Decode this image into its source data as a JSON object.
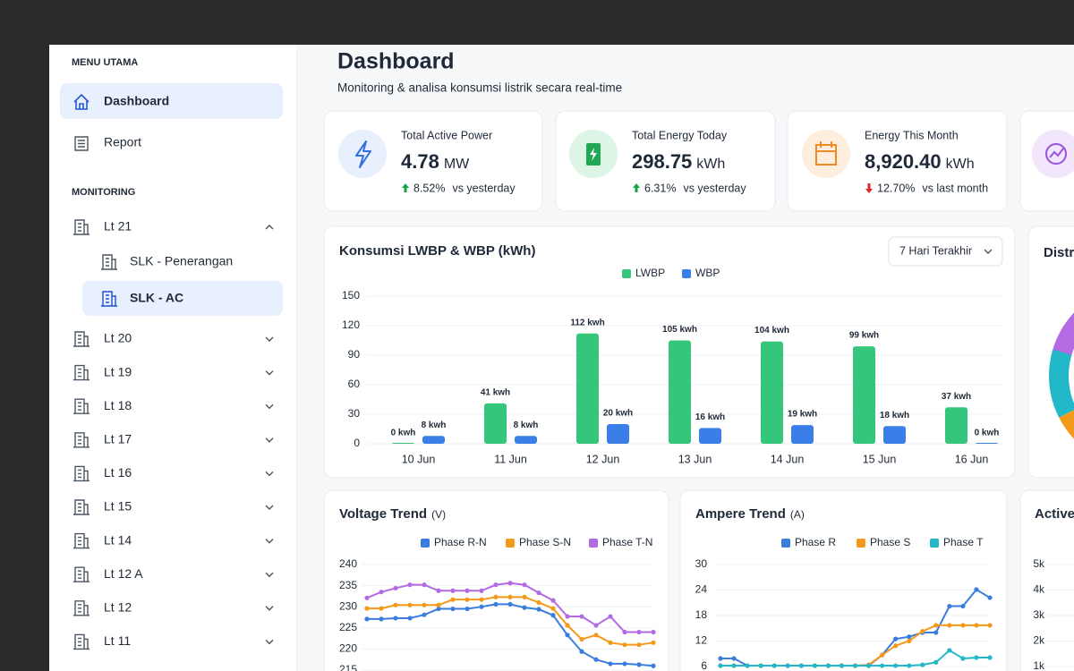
{
  "sidebar": {
    "menu_title": "MENU UTAMA",
    "menu": [
      "Dashboard",
      "Report"
    ],
    "monitoring_title": "MONITORING",
    "floors": [
      {
        "label": "Lt 21",
        "children": [
          "SLK - Penerangan",
          "SLK - AC"
        ]
      },
      {
        "label": "Lt 20"
      },
      {
        "label": "Lt 19"
      },
      {
        "label": "Lt 18"
      },
      {
        "label": "Lt 17"
      },
      {
        "label": "Lt 16"
      },
      {
        "label": "Lt 15"
      },
      {
        "label": "Lt 14"
      },
      {
        "label": "Lt 12 A"
      },
      {
        "label": "Lt 12"
      },
      {
        "label": "Lt 11"
      }
    ]
  },
  "header": {
    "title": "Dashboard",
    "subtitle": "Monitoring & analisa konsumsi listrik secara real-time"
  },
  "stat_cards": [
    {
      "label": "Total Active Power",
      "value": "4.78",
      "unit": "MW",
      "change": "8.52%",
      "trend": "up",
      "compare": "vs yesterday"
    },
    {
      "label": "Total Energy Today",
      "value": "298.75",
      "unit": "kWh",
      "change": "6.31%",
      "trend": "up",
      "compare": "vs yesterday"
    },
    {
      "label": "Energy This Month",
      "value": "8,920.40",
      "unit": "kWh",
      "change": "12.70%",
      "trend": "down",
      "compare": "vs last month"
    }
  ],
  "distribution": {
    "title": "Distr"
  },
  "chart_data": [
    {
      "type": "bar",
      "title": "Konsumsi LWBP & WBP (kWh)",
      "dropdown": "7 Hari Terakhir",
      "categories": [
        "10 Jun",
        "11 Jun",
        "12 Jun",
        "13 Jun",
        "14 Jun",
        "15 Jun",
        "16 Jun"
      ],
      "series": [
        {
          "name": "LWBP",
          "color": "#34c77b",
          "values": [
            0,
            41,
            112,
            105,
            104,
            99,
            37
          ],
          "value_labels": [
            "0 kwh",
            "41 kwh",
            "112 kwh",
            "105 kwh",
            "104 kwh",
            "99 kwh",
            "37 kwh"
          ]
        },
        {
          "name": "WBP",
          "color": "#3b7ee8",
          "values": [
            8,
            8,
            20,
            16,
            19,
            18,
            0
          ],
          "value_labels": [
            "8 kwh",
            "8 kwh",
            "20 kwh",
            "16 kwh",
            "19 kwh",
            "18 kwh",
            "0 kwh"
          ]
        }
      ],
      "ylim": [
        0,
        150
      ],
      "yticks": [
        0,
        30,
        60,
        90,
        120,
        150
      ],
      "grid": true
    },
    {
      "type": "line",
      "title": "Voltage Trend",
      "unit": "(V)",
      "categories": [
        null,
        null,
        null,
        null,
        null,
        null,
        null,
        null,
        null,
        null,
        null,
        null,
        null,
        null,
        null,
        null,
        null,
        null,
        null,
        null,
        null
      ],
      "series": [
        {
          "name": "Phase R-N",
          "color": "#3b7ddd",
          "values": [
            227.1,
            227.1,
            227.3,
            227.3,
            228.1,
            229.5,
            229.5,
            229.5,
            230,
            230.6,
            230.6,
            229.8,
            229.4,
            228,
            223.3,
            219.4,
            217.5,
            216.5,
            216.5,
            216.3,
            216
          ]
        },
        {
          "name": "Phase S-N",
          "color": "#f39a1a",
          "values": [
            229.6,
            229.6,
            230.4,
            230.4,
            230.4,
            230.4,
            231.7,
            231.7,
            231.7,
            232.3,
            232.3,
            232.3,
            231,
            229.6,
            225.6,
            222.3,
            223.3,
            221.5,
            221,
            221,
            221.5
          ]
        },
        {
          "name": "Phase T-N",
          "color": "#b36ae2",
          "values": [
            232.1,
            233.5,
            234.4,
            235.2,
            235.2,
            233.8,
            233.8,
            233.8,
            233.8,
            235.2,
            235.6,
            235.2,
            233.3,
            231.5,
            227.7,
            227.7,
            225.6,
            227.7,
            224,
            224,
            224
          ]
        }
      ],
      "ylim": [
        215,
        240
      ],
      "yticks": [
        215,
        220,
        225,
        230,
        235,
        240
      ],
      "grid": true
    },
    {
      "type": "line",
      "title": "Ampere Trend",
      "unit": "(A)",
      "categories": [
        null,
        null,
        null,
        null,
        null,
        null,
        null,
        null,
        null,
        null,
        null,
        null,
        null,
        null,
        null,
        null,
        null,
        null,
        null,
        null,
        null
      ],
      "series": [
        {
          "name": "Phase R",
          "color": "#3b7ddd",
          "values": [
            7.9,
            7.9,
            6.2,
            6.2,
            6.2,
            6.2,
            6.2,
            6.2,
            6.2,
            6.2,
            6.2,
            6.2,
            8.7,
            12.5,
            13,
            14,
            14,
            20.2,
            20.2,
            24.1,
            22.2
          ]
        },
        {
          "name": "Phase S",
          "color": "#f39a1a",
          "values": [
            6.2,
            6.2,
            6.2,
            6.2,
            6.2,
            6.2,
            6.2,
            6.2,
            6.2,
            6.2,
            6.2,
            6.4,
            8.7,
            10.9,
            12,
            14.3,
            15.7,
            15.7,
            15.7,
            15.7,
            15.7
          ]
        },
        {
          "name": "Phase T",
          "color": "#22b8c8",
          "values": [
            6.2,
            6.2,
            6.2,
            6.2,
            6.2,
            6.2,
            6.2,
            6.2,
            6.2,
            6.2,
            6.2,
            6.2,
            6.2,
            6.2,
            6.2,
            6.4,
            7,
            9.8,
            7.9,
            8.1,
            8.1
          ]
        }
      ],
      "ylim": [
        6,
        30
      ],
      "yticks": [
        6,
        12,
        18,
        24,
        30
      ],
      "grid": true
    },
    {
      "type": "line",
      "title": "Active",
      "ylim": [
        1000,
        5000
      ],
      "yticks": [
        {
          "value": 1000,
          "label": "1k"
        },
        {
          "value": 2000,
          "label": "2k"
        },
        {
          "value": 3000,
          "label": "3k"
        },
        {
          "value": 4000,
          "label": "4k"
        },
        {
          "value": 5000,
          "label": "5k"
        }
      ],
      "grid": true
    }
  ]
}
